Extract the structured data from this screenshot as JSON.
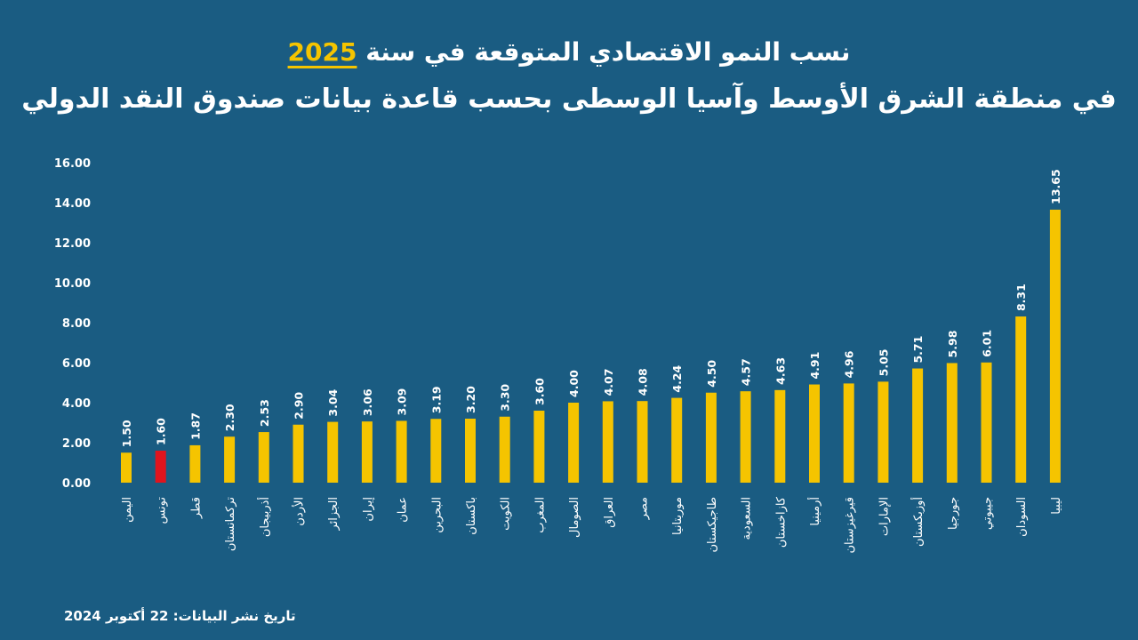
{
  "header": {
    "title_line1_text": "نسب النمو الاقتصادي المتوقعة في سنة",
    "title_line1_year": "2025",
    "title_line2": "في منطقة الشرق الأوسط وآسيا الوسطى بحسب قاعدة بيانات صندوق النقد الدولي"
  },
  "footer": {
    "publication_date": "تاريخ نشر البيانات: 22 أكتوبر 2024"
  },
  "colors": {
    "background": "#1a5c82",
    "bar_default": "#f5c400",
    "bar_highlight": "#e0141e",
    "text": "#ffffff"
  },
  "chart_data": {
    "type": "bar",
    "title": "",
    "xlabel": "",
    "ylabel": "",
    "ylim": [
      0,
      16
    ],
    "y_ticks": [
      "0.00",
      "2.00",
      "4.00",
      "6.00",
      "8.00",
      "10.00",
      "12.00",
      "14.00",
      "16.00"
    ],
    "grid": false,
    "highlight_category": "تونس",
    "categories": [
      "اليمن",
      "تونس",
      "قطر",
      "تركمانستان",
      "أذربيجان",
      "الأردن",
      "الجزائر",
      "إيران",
      "عمان",
      "البحرين",
      "باكستان",
      "الكويت",
      "المغرب",
      "الصومال",
      "العراق",
      "مصر",
      "موريتانيا",
      "طاجيكستان",
      "السعودية",
      "كازاخستان",
      "أرمينيا",
      "قيرغيزستان",
      "الإمارات",
      "أوزبكستان",
      "جورجيا",
      "جيبوتي",
      "السودان",
      "ليبيا"
    ],
    "values": [
      1.5,
      1.6,
      1.87,
      2.3,
      2.53,
      2.9,
      3.04,
      3.06,
      3.09,
      3.19,
      3.2,
      3.3,
      3.6,
      4.0,
      4.07,
      4.08,
      4.24,
      4.5,
      4.57,
      4.63,
      4.91,
      4.96,
      5.05,
      5.71,
      5.98,
      6.01,
      8.31,
      13.65
    ],
    "value_labels": [
      "1.50",
      "1.60",
      "1.87",
      "2.30",
      "2.53",
      "2.90",
      "3.04",
      "3.06",
      "3.09",
      "3.19",
      "3.20",
      "3.30",
      "3.60",
      "4.00",
      "4.07",
      "4.08",
      "4.24",
      "4.50",
      "4.57",
      "4.63",
      "4.91",
      "4.96",
      "5.05",
      "5.71",
      "5.98",
      "6.01",
      "8.31",
      "13.65"
    ]
  }
}
